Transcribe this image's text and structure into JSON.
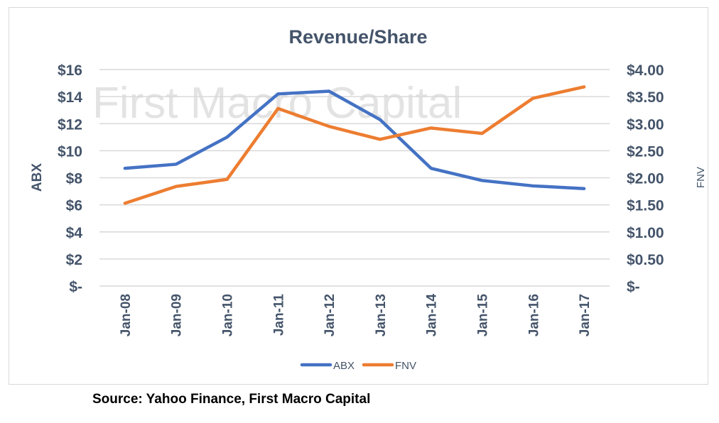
{
  "chart_data": {
    "type": "line",
    "title": "Revenue/Share",
    "watermark": "First Macro Capital",
    "categories": [
      "Jan-08",
      "Jan-09",
      "Jan-10",
      "Jan-11",
      "Jan-12",
      "Jan-13",
      "Jan-14",
      "Jan-15",
      "Jan-16",
      "Jan-17"
    ],
    "series": [
      {
        "name": "ABX",
        "axis": "left",
        "color": "#4472c4",
        "values": [
          8.7,
          9.0,
          11.0,
          14.2,
          14.4,
          12.3,
          8.7,
          7.8,
          7.4,
          7.2
        ]
      },
      {
        "name": "FNV",
        "axis": "right",
        "color": "#ed7d31",
        "values": [
          1.53,
          1.84,
          1.97,
          3.28,
          2.95,
          2.71,
          2.92,
          2.82,
          3.47,
          3.68
        ]
      }
    ],
    "ylabel": "ABX",
    "y2label": "FNV",
    "ylim": [
      0,
      16
    ],
    "y2lim": [
      0,
      4
    ],
    "yticks": [
      "$-",
      "$2",
      "$4",
      "$6",
      "$8",
      "$10",
      "$12",
      "$14",
      "$16"
    ],
    "y2ticks": [
      "$-",
      "$0.50",
      "$1.00",
      "$1.50",
      "$2.00",
      "$2.50",
      "$3.00",
      "$3.50",
      "$4.00"
    ],
    "grid": true,
    "legend": "bottom"
  },
  "source": "Source: Yahoo Finance, First Macro Capital"
}
